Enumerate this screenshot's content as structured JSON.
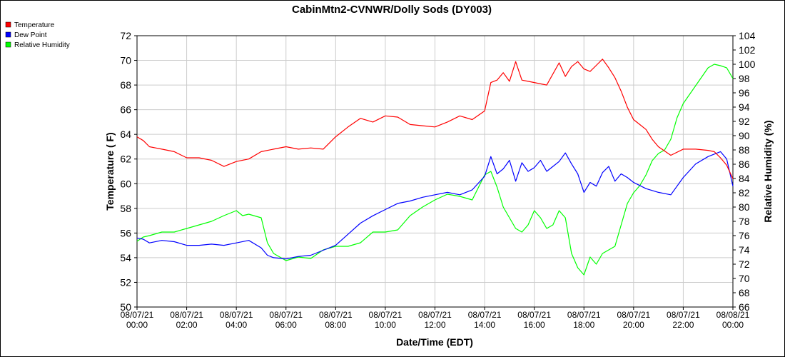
{
  "chart_data": {
    "type": "line",
    "title": "CabinMtn2-CVNWR/Dolly Sods (DY003)",
    "xlabel": "Date/Time (EDT)",
    "ylabel_left": "Temperature ( F)",
    "ylabel_right": "Relative Humidity (%)",
    "ylim_left": [
      50,
      72
    ],
    "yticks_left": [
      "50",
      "52",
      "54",
      "56",
      "58",
      "60",
      "62",
      "64",
      "66",
      "68",
      "70",
      "72"
    ],
    "ylim_right": [
      66,
      104
    ],
    "yticks_right": [
      "66",
      "68",
      "70",
      "72",
      "74",
      "76",
      "78",
      "80",
      "82",
      "84",
      "86",
      "88",
      "90",
      "92",
      "94",
      "96",
      "98",
      "100",
      "102",
      "104"
    ],
    "xlim_hours": [
      0,
      24
    ],
    "xticks": [
      {
        "date": "08/07/21",
        "time": "00:00"
      },
      {
        "date": "08/07/21",
        "time": "02:00"
      },
      {
        "date": "08/07/21",
        "time": "04:00"
      },
      {
        "date": "08/07/21",
        "time": "06:00"
      },
      {
        "date": "08/07/21",
        "time": "08:00"
      },
      {
        "date": "08/07/21",
        "time": "10:00"
      },
      {
        "date": "08/07/21",
        "time": "12:00"
      },
      {
        "date": "08/07/21",
        "time": "14:00"
      },
      {
        "date": "08/07/21",
        "time": "16:00"
      },
      {
        "date": "08/07/21",
        "time": "18:00"
      },
      {
        "date": "08/07/21",
        "time": "20:00"
      },
      {
        "date": "08/07/21",
        "time": "22:00"
      },
      {
        "date": "08/08/21",
        "time": "00:00"
      }
    ],
    "grid": true,
    "legend_position": "top-left",
    "series": [
      {
        "name": "Temperature",
        "color": "#ff0000",
        "axis": "left",
        "x": [
          0,
          0.25,
          0.5,
          0.75,
          1,
          1.5,
          2,
          2.5,
          3,
          3.5,
          4,
          4.5,
          5,
          5.5,
          6,
          6.5,
          7,
          7.5,
          8,
          8.5,
          9,
          9.5,
          10,
          10.5,
          11,
          11.5,
          12,
          12.5,
          13,
          13.5,
          14,
          14.25,
          14.5,
          14.75,
          15,
          15.25,
          15.5,
          15.75,
          16,
          16.5,
          17,
          17.25,
          17.5,
          17.75,
          18,
          18.25,
          18.5,
          18.75,
          19,
          19.25,
          19.5,
          19.75,
          20,
          20.25,
          20.5,
          20.75,
          21,
          21.5,
          22,
          22.5,
          23,
          23.25,
          23.5,
          23.75,
          24
        ],
        "y": [
          63.8,
          63.5,
          63.0,
          62.9,
          62.8,
          62.6,
          62.1,
          62.1,
          61.9,
          61.4,
          61.8,
          62.0,
          62.6,
          62.8,
          63.0,
          62.8,
          62.9,
          62.8,
          63.8,
          64.6,
          65.3,
          65.0,
          65.5,
          65.4,
          64.8,
          64.7,
          64.6,
          65.0,
          65.5,
          65.2,
          65.9,
          68.2,
          68.4,
          69.0,
          68.3,
          69.9,
          68.4,
          68.3,
          68.2,
          68.0,
          69.8,
          68.7,
          69.5,
          69.9,
          69.3,
          69.1,
          69.6,
          70.1,
          69.4,
          68.6,
          67.5,
          66.2,
          65.2,
          64.8,
          64.4,
          63.6,
          63.0,
          62.3,
          62.8,
          62.8,
          62.7,
          62.6,
          62.1,
          61.5,
          60.4
        ]
      },
      {
        "name": "Dew Point",
        "color": "#0000ff",
        "axis": "left",
        "x": [
          0,
          0.25,
          0.5,
          1,
          1.5,
          2,
          2.5,
          3,
          3.5,
          4,
          4.5,
          5,
          5.25,
          5.5,
          6,
          6.5,
          7,
          7.5,
          8,
          8.5,
          9,
          9.5,
          10,
          10.5,
          11,
          11.5,
          12,
          12.5,
          13,
          13.5,
          14,
          14.25,
          14.5,
          14.75,
          15,
          15.25,
          15.5,
          15.75,
          16,
          16.25,
          16.5,
          16.75,
          17,
          17.25,
          17.5,
          17.75,
          18,
          18.25,
          18.5,
          18.75,
          19,
          19.25,
          19.5,
          19.75,
          20,
          20.5,
          21,
          21.5,
          22,
          22.5,
          23,
          23.5,
          23.75,
          24
        ],
        "y": [
          55.6,
          55.5,
          55.2,
          55.4,
          55.3,
          55.0,
          55.0,
          55.1,
          55.0,
          55.2,
          55.4,
          54.8,
          54.2,
          54.0,
          53.9,
          54.1,
          54.2,
          54.6,
          55.0,
          55.9,
          56.8,
          57.4,
          57.9,
          58.4,
          58.6,
          58.9,
          59.1,
          59.3,
          59.1,
          59.5,
          60.6,
          62.2,
          60.8,
          61.2,
          61.9,
          60.2,
          61.7,
          61.0,
          61.3,
          61.9,
          61.0,
          61.4,
          61.8,
          62.5,
          61.6,
          60.8,
          59.3,
          60.1,
          59.8,
          60.9,
          61.4,
          60.2,
          60.8,
          60.5,
          60.1,
          59.6,
          59.3,
          59.1,
          60.5,
          61.6,
          62.2,
          62.6,
          62.0,
          59.8
        ]
      },
      {
        "name": "Relative Humidity",
        "color": "#00ff00",
        "axis": "right",
        "x": [
          0,
          0.25,
          0.5,
          1,
          1.5,
          2,
          2.5,
          3,
          3.5,
          4,
          4.25,
          4.5,
          5,
          5.25,
          5.5,
          6,
          6.5,
          7,
          7.5,
          8,
          8.5,
          9,
          9.5,
          10,
          10.5,
          11,
          11.5,
          12,
          12.5,
          13,
          13.5,
          14,
          14.25,
          14.5,
          14.75,
          15,
          15.25,
          15.5,
          15.75,
          16,
          16.25,
          16.5,
          16.75,
          17,
          17.25,
          17.5,
          17.75,
          18,
          18.25,
          18.5,
          18.75,
          19,
          19.25,
          19.5,
          19.75,
          20,
          20.25,
          20.5,
          20.75,
          21,
          21.25,
          21.5,
          21.75,
          22,
          22.5,
          23,
          23.25,
          23.5,
          23.75,
          24
        ],
        "y": [
          75.2,
          75.8,
          76.0,
          76.5,
          76.5,
          77.0,
          77.5,
          78.0,
          78.8,
          79.5,
          78.8,
          79.0,
          78.5,
          75.0,
          73.5,
          72.5,
          73.0,
          72.8,
          74.0,
          74.5,
          74.5,
          75.0,
          76.5,
          76.5,
          76.8,
          78.8,
          80.0,
          81.0,
          81.8,
          81.5,
          81.0,
          84.5,
          85.0,
          82.8,
          80.0,
          78.5,
          77.0,
          76.5,
          77.5,
          79.5,
          78.5,
          77.0,
          77.5,
          79.5,
          78.5,
          73.5,
          71.5,
          70.5,
          73.0,
          72.0,
          73.5,
          74.0,
          74.5,
          77.5,
          80.5,
          82.0,
          83.0,
          84.5,
          86.5,
          87.5,
          88.0,
          89.5,
          92.5,
          94.5,
          97.0,
          99.5,
          100.0,
          99.8,
          99.5,
          98.0
        ]
      }
    ]
  }
}
